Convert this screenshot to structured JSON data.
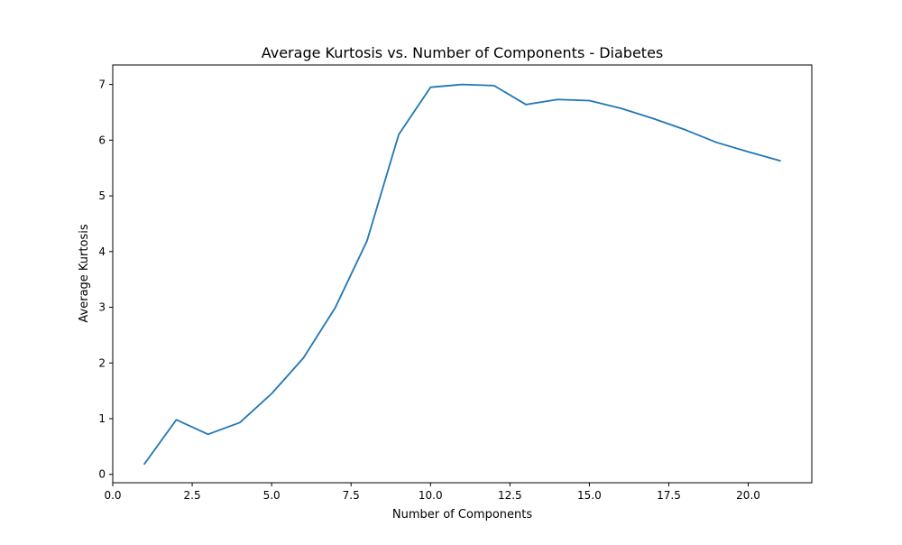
{
  "chart_data": {
    "type": "line",
    "title": "Average Kurtosis vs. Number of Components - Diabetes",
    "xlabel": "Number of Components",
    "ylabel": "Average Kurtosis",
    "xlim": [
      0.0,
      22.0
    ],
    "ylim": [
      -0.15,
      7.35
    ],
    "x_ticks": [
      0.0,
      2.5,
      5.0,
      7.5,
      10.0,
      12.5,
      15.0,
      17.5,
      20.0
    ],
    "x_tick_labels": [
      "0.0",
      "2.5",
      "5.0",
      "7.5",
      "10.0",
      "12.5",
      "15.0",
      "17.5",
      "20.0"
    ],
    "y_ticks": [
      0,
      1,
      2,
      3,
      4,
      5,
      6,
      7
    ],
    "y_tick_labels": [
      "0",
      "1",
      "2",
      "3",
      "4",
      "5",
      "6",
      "7"
    ],
    "grid": false,
    "series": [
      {
        "color": "#1f77b4",
        "x": [
          1,
          2,
          3,
          4,
          5,
          6,
          7,
          8,
          9,
          10,
          11,
          12,
          13,
          14,
          15,
          16,
          17,
          18,
          19,
          20,
          21
        ],
        "y": [
          0.19,
          0.98,
          0.72,
          0.93,
          1.45,
          2.09,
          2.99,
          4.19,
          6.1,
          6.95,
          7.0,
          6.98,
          6.64,
          6.73,
          6.71,
          6.57,
          6.39,
          6.19,
          5.96,
          5.79,
          5.63
        ]
      }
    ]
  }
}
